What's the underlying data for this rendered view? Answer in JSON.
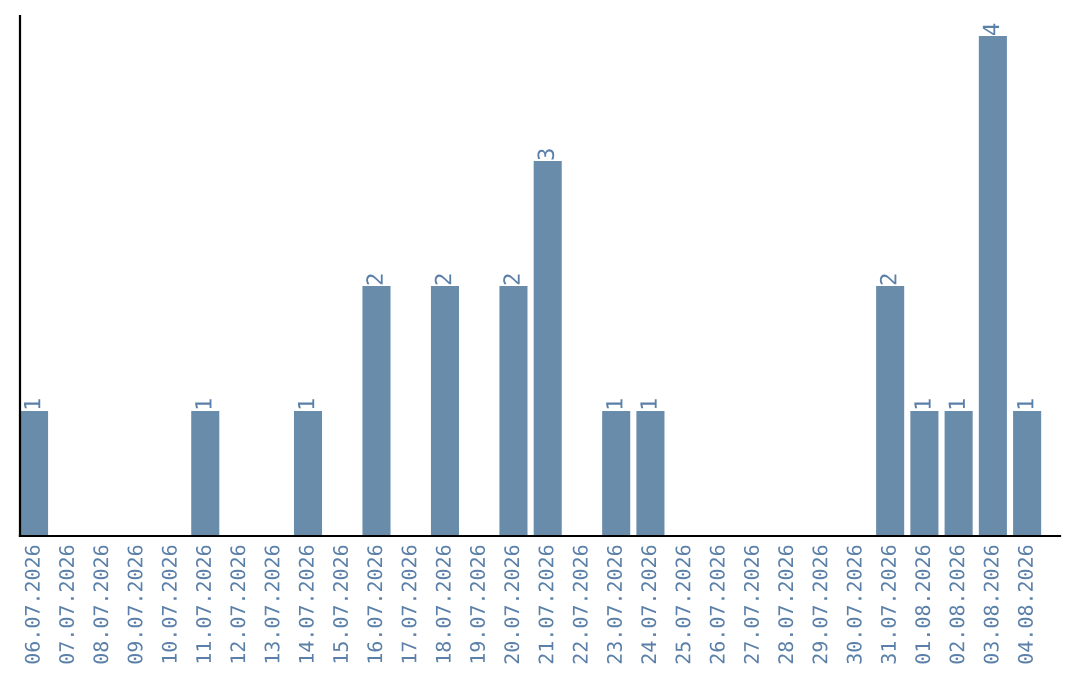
{
  "chart_data": {
    "type": "bar",
    "categories": [
      "06.07.2026",
      "07.07.2026",
      "08.07.2026",
      "09.07.2026",
      "10.07.2026",
      "11.07.2026",
      "12.07.2026",
      "13.07.2026",
      "14.07.2026",
      "15.07.2026",
      "16.07.2026",
      "17.07.2026",
      "18.07.2026",
      "19.07.2026",
      "20.07.2026",
      "21.07.2026",
      "22.07.2026",
      "23.07.2026",
      "24.07.2026",
      "25.07.2026",
      "26.07.2026",
      "27.07.2026",
      "28.07.2026",
      "29.07.2026",
      "30.07.2026",
      "31.07.2026",
      "01.08.2026",
      "02.08.2026",
      "03.08.2026",
      "04.08.2026"
    ],
    "values": [
      1,
      0,
      0,
      0,
      0,
      1,
      0,
      0,
      1,
      0,
      2,
      0,
      2,
      0,
      2,
      3,
      0,
      1,
      1,
      0,
      0,
      0,
      0,
      0,
      0,
      2,
      1,
      1,
      4,
      1
    ],
    "value_labels": [
      "1",
      null,
      null,
      null,
      null,
      "1",
      null,
      null,
      "1",
      null,
      "2",
      null,
      "2",
      null,
      "2",
      "3",
      null,
      "1",
      "1",
      null,
      null,
      null,
      null,
      null,
      null,
      "2",
      "1",
      "1",
      "4",
      "1"
    ],
    "color": "#6a8cab",
    "ylim": [
      0,
      4.16
    ],
    "tick_labels": "x",
    "grid": false,
    "legend": false
  }
}
